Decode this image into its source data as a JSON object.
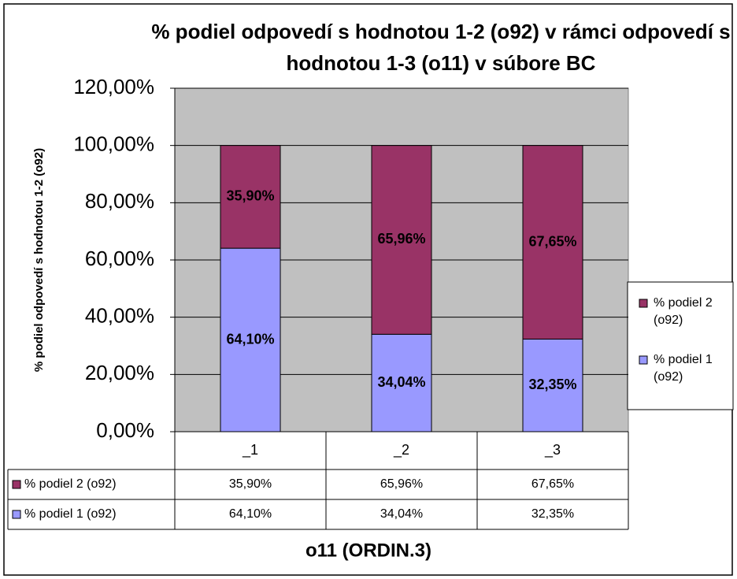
{
  "chart_data": {
    "type": "stacked_bar",
    "title": "% podiel odpovedí s hodnotou 1-2 (o92) v rámci odpovedí s hodnotou 1-3 (o11) v súbore BC",
    "x_label": "o11 (ORDIN.3)",
    "y_label": "% podiel odpovedí s hodnotou 1-2 (o92)",
    "categories": [
      "_1",
      "_2",
      "_3"
    ],
    "series": [
      {
        "name": "% podiel 1 (o92)",
        "color": "#9999ff",
        "values": [
          64.1,
          34.04,
          32.35
        ],
        "value_labels": [
          "64,10%",
          "34,04%",
          "32,35%"
        ]
      },
      {
        "name": "% podiel 2 (o92)",
        "color": "#993366",
        "values": [
          35.9,
          65.96,
          67.65
        ],
        "value_labels": [
          "35,90%",
          "65,96%",
          "67,65%"
        ]
      }
    ],
    "ylim": [
      0,
      120
    ],
    "yticks": [
      {
        "value": 0,
        "label": "0,00%"
      },
      {
        "value": 20,
        "label": "20,00%"
      },
      {
        "value": 40,
        "label": "40,00%"
      },
      {
        "value": 60,
        "label": "60,00%"
      },
      {
        "value": 80,
        "label": "80,00%"
      },
      {
        "value": 100,
        "label": "100,00%"
      },
      {
        "value": 120,
        "label": "120,00%"
      }
    ],
    "grid": true,
    "legend": "right"
  }
}
